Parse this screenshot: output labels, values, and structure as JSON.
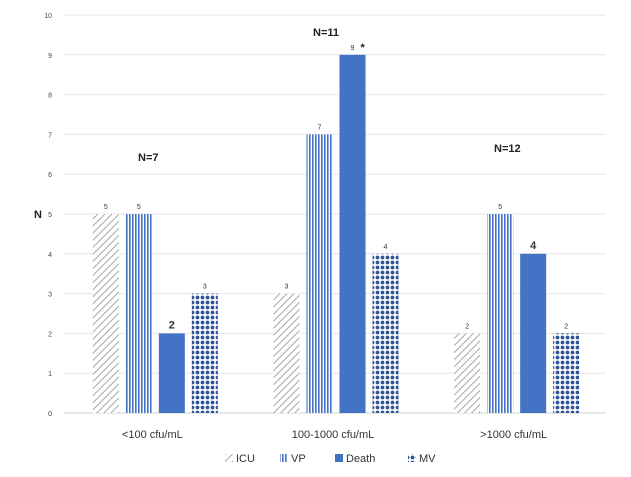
{
  "chart_data": {
    "type": "bar",
    "title": "",
    "xlabel": "",
    "ylabel": "N",
    "ylim": [
      0,
      10
    ],
    "yticks": [
      "0",
      "1",
      "2",
      "3",
      "4",
      "5",
      "6",
      "7",
      "8",
      "9",
      "10"
    ],
    "grid": true,
    "legend_position": "bottom",
    "categories": [
      "<100 cfu/mL",
      "100-1000 cfu/mL",
      ">1000 cfu/mL"
    ],
    "group_labels": [
      "N=7",
      "N=11",
      "N=12"
    ],
    "series": [
      {
        "name": "ICU",
        "values": [
          5,
          3,
          2
        ],
        "color": "#a6a6a6",
        "pattern": "diagonal-hatch"
      },
      {
        "name": "VP",
        "values": [
          5,
          7,
          5
        ],
        "color": "#4472c4",
        "pattern": "vertical-lines"
      },
      {
        "name": "Death",
        "values": [
          2,
          9,
          4
        ],
        "color": "#4472c4",
        "pattern": "solid"
      },
      {
        "name": "MV",
        "values": [
          3,
          4,
          2
        ],
        "color": "#2f5597",
        "pattern": "dots"
      }
    ],
    "annotations": [
      {
        "series": "Death",
        "category": "100-1000 cfu/mL",
        "text": "*"
      }
    ]
  }
}
